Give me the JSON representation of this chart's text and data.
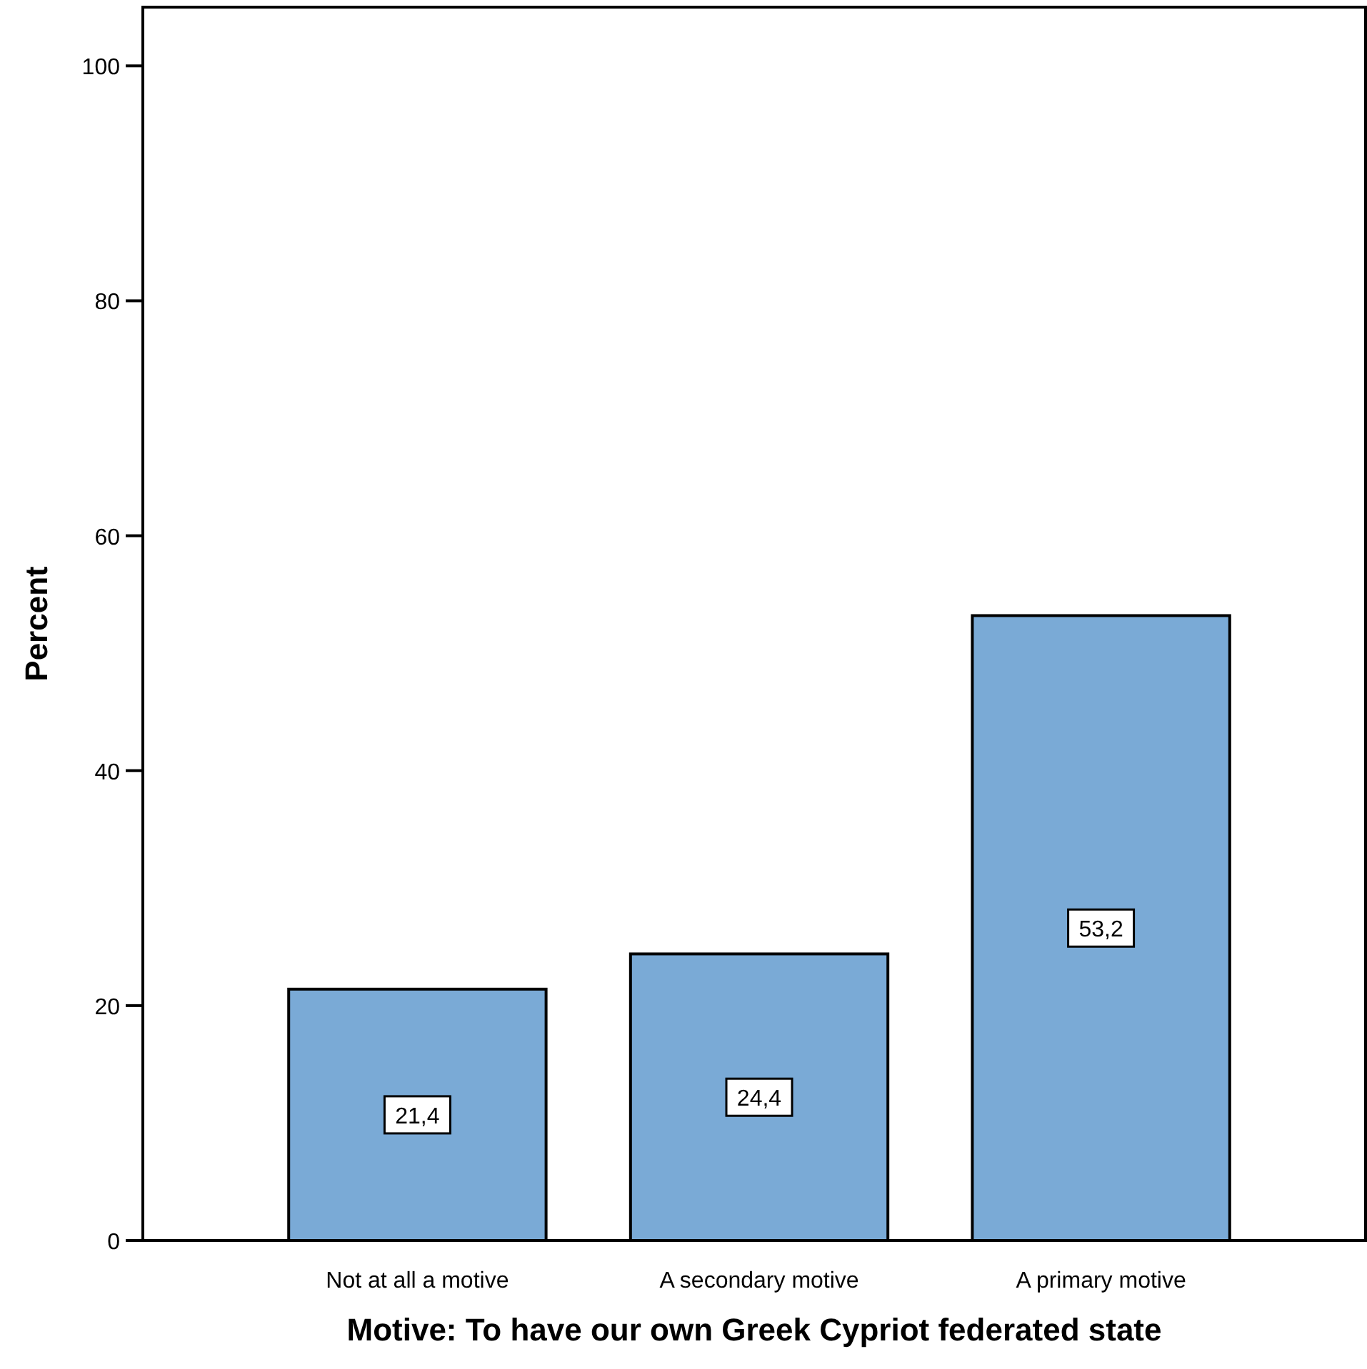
{
  "chart_data": {
    "type": "bar",
    "xlabel": "Motive: To have our own Greek Cypriot federated state",
    "ylabel": "Percent",
    "categories": [
      "Not at all a motive",
      "A secondary motive",
      "A primary motive"
    ],
    "values": [
      21.4,
      24.4,
      53.2
    ],
    "color": "#7aaad6",
    "value_labels": [
      "21,4",
      "24,4",
      "53,2"
    ],
    "ylim": [
      0,
      105
    ],
    "yticks": [
      0,
      20,
      40,
      60,
      80,
      100
    ],
    "grid": false
  }
}
